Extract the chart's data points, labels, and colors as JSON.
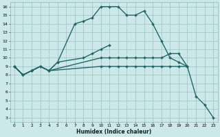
{
  "xlabel": "Humidex (Indice chaleur)",
  "xlim": [
    -0.5,
    23.5
  ],
  "ylim": [
    2.5,
    16.5
  ],
  "xticks": [
    0,
    1,
    2,
    3,
    4,
    5,
    6,
    7,
    8,
    9,
    10,
    11,
    12,
    13,
    14,
    15,
    16,
    17,
    18,
    19,
    20,
    21,
    22,
    23
  ],
  "yticks": [
    3,
    4,
    5,
    6,
    7,
    8,
    9,
    10,
    11,
    12,
    13,
    14,
    15,
    16
  ],
  "bg_color": "#cce8e8",
  "grid_color": "#88bbbb",
  "line_color": "#226666",
  "line_width": 1.0,
  "marker_size": 2.0,
  "line1_x": [
    0,
    1,
    2,
    3,
    4,
    5,
    7,
    8,
    9,
    10,
    11,
    12,
    13,
    14,
    15,
    16,
    17,
    18,
    19,
    20
  ],
  "line1_y": [
    9,
    8,
    8.5,
    9,
    8.5,
    9.5,
    14,
    14.3,
    14.7,
    16,
    16,
    16,
    15,
    15,
    15.5,
    14,
    12,
    10,
    9.5,
    9
  ],
  "line2_x": [
    0,
    1,
    2,
    3,
    4,
    5,
    8,
    9,
    10,
    11
  ],
  "line2_y": [
    9,
    8,
    8.5,
    9,
    8.5,
    9.5,
    10,
    10.5,
    11,
    11.5
  ],
  "line3_x": [
    0,
    1,
    2,
    3,
    4,
    10,
    11,
    12,
    13,
    14,
    15,
    16,
    17,
    18,
    19,
    20,
    21,
    22,
    23
  ],
  "line3_y": [
    9,
    8,
    8.5,
    9,
    8.5,
    10,
    10,
    10,
    10,
    10,
    10,
    10,
    10,
    10.5,
    10.5,
    9,
    5.5,
    4.5,
    3
  ],
  "line4_x": [
    0,
    1,
    2,
    3,
    4,
    10,
    11,
    12,
    13,
    14,
    15,
    16,
    17,
    18,
    19,
    20
  ],
  "line4_y": [
    9,
    8,
    8.5,
    9,
    8.5,
    9,
    9,
    9,
    9,
    9,
    9,
    9,
    9,
    9,
    9,
    9
  ]
}
